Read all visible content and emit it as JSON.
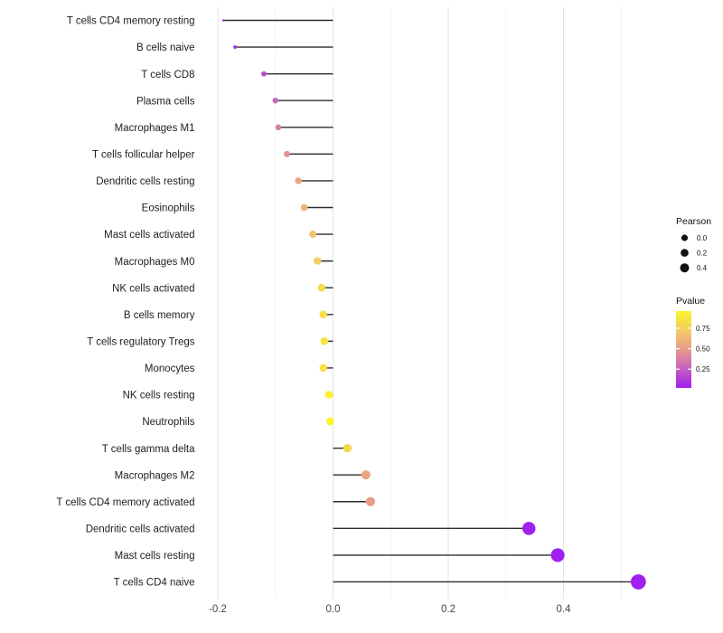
{
  "chart_data": {
    "type": "lollipop",
    "title": "",
    "xlabel": "",
    "ylabel": "",
    "xlim": [
      -0.215,
      0.585
    ],
    "grid": "on",
    "x_major_ticks": [
      -0.2,
      0.0,
      0.2,
      0.4
    ],
    "x_major_tick_labels": [
      "-0.2",
      "0.0",
      "0.2",
      "0.4"
    ],
    "x_minor_ticks": [
      -0.1,
      0.1,
      0.3,
      0.5
    ],
    "rows": [
      {
        "label": "T cells CD4 memory resting",
        "pearson": -0.19,
        "pvalue": 0.02
      },
      {
        "label": "B cells naive",
        "pearson": -0.17,
        "pvalue": 0.07
      },
      {
        "label": "T cells CD8",
        "pearson": -0.12,
        "pvalue": 0.18
      },
      {
        "label": "Plasma cells",
        "pearson": -0.1,
        "pvalue": 0.28
      },
      {
        "label": "Macrophages M1",
        "pearson": -0.095,
        "pvalue": 0.38
      },
      {
        "label": "T cells follicular helper",
        "pearson": -0.08,
        "pvalue": 0.45
      },
      {
        "label": "Dendritic cells resting",
        "pearson": -0.06,
        "pvalue": 0.55
      },
      {
        "label": "Eosinophils",
        "pearson": -0.05,
        "pvalue": 0.62
      },
      {
        "label": "Mast cells activated",
        "pearson": -0.035,
        "pvalue": 0.68
      },
      {
        "label": "Macrophages M0",
        "pearson": -0.027,
        "pvalue": 0.74
      },
      {
        "label": "NK cells activated",
        "pearson": -0.02,
        "pvalue": 0.82
      },
      {
        "label": "B cells memory",
        "pearson": -0.017,
        "pvalue": 0.85
      },
      {
        "label": "T cells regulatory  Tregs",
        "pearson": -0.015,
        "pvalue": 0.87
      },
      {
        "label": "Monocytes",
        "pearson": -0.017,
        "pvalue": 0.86
      },
      {
        "label": "NK cells resting",
        "pearson": -0.007,
        "pvalue": 0.94
      },
      {
        "label": "Neutrophils",
        "pearson": -0.005,
        "pvalue": 0.96
      },
      {
        "label": "T cells gamma delta",
        "pearson": 0.025,
        "pvalue": 0.8
      },
      {
        "label": "Macrophages M2",
        "pearson": 0.057,
        "pvalue": 0.55
      },
      {
        "label": "T cells CD4 memory activated",
        "pearson": 0.065,
        "pvalue": 0.5
      },
      {
        "label": "Dendritic cells activated",
        "pearson": 0.34,
        "pvalue": 0.012
      },
      {
        "label": "Mast cells resting",
        "pearson": 0.39,
        "pvalue": 0.008
      },
      {
        "label": "T cells CD4 naive",
        "pearson": 0.53,
        "pvalue": 0.002
      }
    ],
    "legend": {
      "size": {
        "title": "Pearson",
        "labels": [
          "0.0",
          "0.2",
          "0.4"
        ],
        "dot_radii": [
          3.6,
          4.3,
          5.0
        ],
        "dot_color": "#121212"
      },
      "color": {
        "title": "Pvalue",
        "tick_labels": [
          "0.75",
          "0.50",
          "0.25"
        ],
        "tick_values": [
          0.75,
          0.5,
          0.25
        ],
        "domain": [
          0.02,
          0.96
        ],
        "gradient_stops_low_to_high": [
          "#A020F0",
          "#C75FBE",
          "#E69B8B",
          "#F3CB63",
          "#FBF32B"
        ]
      }
    },
    "style_colors": {
      "background": "#FFFFFF",
      "grid_major": "#E4E4E4",
      "grid_minor": "#EEEEEE",
      "stem": "#2E2E2E",
      "x_axis_text": "#454545",
      "y_axis_text": "#1E1E1E",
      "legend_text": "#111111"
    }
  }
}
